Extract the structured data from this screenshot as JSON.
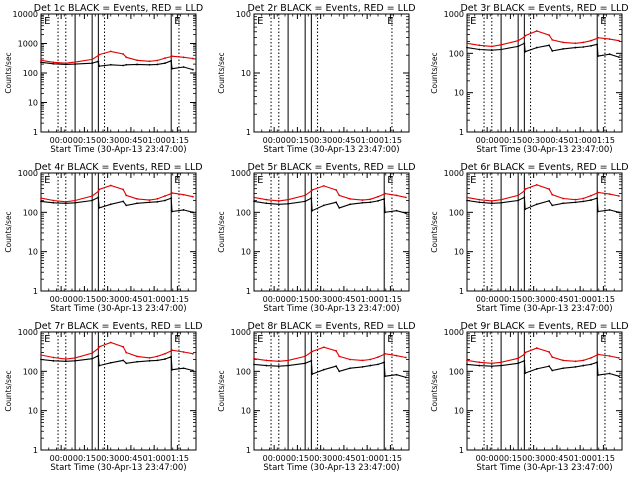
{
  "figure": {
    "x_axis_label": "Start Time (30-Apr-13 23:47:00)",
    "y_axis_label": "Counts/sec",
    "x_tick_labels": [
      "00:00",
      "00:15",
      "00:30",
      "00:45",
      "01:00",
      "01:15"
    ],
    "x_tick_minutes": [
      13,
      28,
      43,
      58,
      73,
      88
    ],
    "x_range_minutes": [
      0,
      100
    ],
    "series_legend": "BLACK = Events, RED = LLD",
    "colors": {
      "events": "#000000",
      "lld": "#e00000"
    }
  },
  "chart_data": [
    {
      "type": "line",
      "title": "Det 1c BLACK = Events, RED = LLD",
      "xlabel": "Start Time (30-Apr-13 23:47:00)",
      "ylabel": "Counts/sec",
      "yscale": "log",
      "ylim": [
        1,
        10000
      ],
      "y_tick_labels": [
        "1",
        "10",
        "100",
        "1000",
        "10000"
      ],
      "xlim_minutes": [
        0,
        100
      ],
      "solid_vlines_minutes": [
        22,
        33,
        37,
        84
      ],
      "dashed_vlines_minutes": [
        11,
        16,
        41,
        89
      ],
      "markers": [
        {
          "label": "E",
          "minute": 2
        },
        {
          "label": "E",
          "minute": 86
        }
      ],
      "x_minutes": [
        0,
        8,
        16,
        22,
        33,
        37,
        37.5,
        45,
        53,
        55,
        62,
        70,
        75,
        80,
        84,
        84.5,
        92,
        98
      ],
      "series": [
        {
          "name": "Events",
          "values": [
            230,
            205,
            195,
            200,
            215,
            250,
            170,
            190,
            180,
            190,
            195,
            190,
            195,
            215,
            260,
            140,
            160,
            130
          ]
        },
        {
          "name": "LLD",
          "values": [
            270,
            230,
            215,
            235,
            290,
            390,
            420,
            540,
            440,
            340,
            270,
            250,
            265,
            320,
            360,
            370,
            340,
            310
          ]
        }
      ]
    },
    {
      "type": "line",
      "title": "Det 2r BLACK = Events, RED = LLD",
      "xlabel": "Start Time (30-Apr-13 23:47:00)",
      "ylabel": "Counts/sec",
      "yscale": "log",
      "ylim": [
        1,
        100
      ],
      "y_tick_labels": [
        "1",
        "10",
        "100"
      ],
      "xlim_minutes": [
        0,
        100
      ],
      "solid_vlines_minutes": [
        22,
        33,
        37
      ],
      "dashed_vlines_minutes": [
        11,
        16,
        41,
        89
      ],
      "markers": [
        {
          "label": "E",
          "minute": 2
        },
        {
          "label": "E",
          "minute": 86
        }
      ],
      "x_minutes": [],
      "series": []
    },
    {
      "type": "line",
      "title": "Det 3r BLACK = Events, RED = LLD",
      "xlabel": "Start Time (30-Apr-13 23:47:00)",
      "ylabel": "Counts/sec",
      "yscale": "log",
      "ylim": [
        1,
        1000
      ],
      "y_tick_labels": [
        "1",
        "10",
        "100",
        "1000"
      ],
      "xlim_minutes": [
        0,
        100
      ],
      "solid_vlines_minutes": [
        22,
        33,
        37,
        84
      ],
      "dashed_vlines_minutes": [
        11,
        16,
        41,
        89
      ],
      "markers": [
        {
          "label": "E",
          "minute": 2
        },
        {
          "label": "E",
          "minute": 86
        }
      ],
      "x_minutes": [
        0,
        8,
        16,
        22,
        33,
        37,
        37.5,
        45,
        53,
        55,
        62,
        70,
        75,
        80,
        84,
        84.5,
        92,
        98
      ],
      "series": [
        {
          "name": "Events",
          "values": [
            140,
            125,
            120,
            125,
            150,
            180,
            110,
            140,
            160,
            115,
            130,
            140,
            145,
            155,
            170,
            85,
            95,
            80
          ]
        },
        {
          "name": "LLD",
          "values": [
            180,
            160,
            150,
            165,
            210,
            260,
            280,
            370,
            290,
            220,
            190,
            180,
            190,
            210,
            240,
            250,
            230,
            210
          ]
        }
      ]
    },
    {
      "type": "line",
      "title": "Det 4r BLACK = Events, RED = LLD",
      "xlabel": "Start Time (30-Apr-13 23:47:00)",
      "ylabel": "Counts/sec",
      "yscale": "log",
      "ylim": [
        1,
        1000
      ],
      "y_tick_labels": [
        "1",
        "10",
        "100",
        "1000"
      ],
      "xlim_minutes": [
        0,
        100
      ],
      "solid_vlines_minutes": [
        22,
        33,
        37,
        84
      ],
      "dashed_vlines_minutes": [
        11,
        16,
        41,
        89
      ],
      "markers": [
        {
          "label": "E",
          "minute": 2
        },
        {
          "label": "E",
          "minute": 86
        }
      ],
      "x_minutes": [
        0,
        8,
        16,
        22,
        33,
        37,
        37.5,
        45,
        53,
        55,
        62,
        70,
        75,
        80,
        84,
        84.5,
        92,
        98
      ],
      "series": [
        {
          "name": "Events",
          "values": [
            190,
            175,
            170,
            175,
            200,
            240,
            130,
            160,
            190,
            150,
            170,
            180,
            185,
            200,
            230,
            105,
            115,
            100
          ]
        },
        {
          "name": "LLD",
          "values": [
            230,
            200,
            185,
            200,
            260,
            340,
            380,
            480,
            380,
            270,
            220,
            205,
            220,
            260,
            300,
            310,
            280,
            250
          ]
        }
      ]
    },
    {
      "type": "line",
      "title": "Det 5r BLACK = Events, RED = LLD",
      "xlabel": "Start Time (30-Apr-13 23:47:00)",
      "ylabel": "Counts/sec",
      "yscale": "log",
      "ylim": [
        1,
        1000
      ],
      "y_tick_labels": [
        "1",
        "10",
        "100",
        "1000"
      ],
      "xlim_minutes": [
        0,
        100
      ],
      "solid_vlines_minutes": [
        22,
        33,
        37,
        84
      ],
      "dashed_vlines_minutes": [
        11,
        16,
        41,
        89
      ],
      "markers": [
        {
          "label": "E",
          "minute": 2
        },
        {
          "label": "E",
          "minute": 86
        }
      ],
      "x_minutes": [
        0,
        8,
        16,
        22,
        33,
        37,
        37.5,
        45,
        53,
        55,
        62,
        70,
        75,
        80,
        84,
        84.5,
        92,
        98
      ],
      "series": [
        {
          "name": "Events",
          "values": [
            190,
            170,
            160,
            165,
            190,
            230,
            110,
            150,
            180,
            130,
            160,
            175,
            180,
            195,
            220,
            100,
            110,
            95
          ]
        },
        {
          "name": "LLD",
          "values": [
            240,
            210,
            195,
            210,
            270,
            350,
            370,
            470,
            370,
            270,
            220,
            205,
            215,
            250,
            290,
            300,
            270,
            240
          ]
        }
      ]
    },
    {
      "type": "line",
      "title": "Det 6r BLACK = Events, RED = LLD",
      "xlabel": "Start Time (30-Apr-13 23:47:00)",
      "ylabel": "Counts/sec",
      "yscale": "log",
      "ylim": [
        1,
        1000
      ],
      "y_tick_labels": [
        "1",
        "10",
        "100",
        "1000"
      ],
      "xlim_minutes": [
        0,
        100
      ],
      "solid_vlines_minutes": [
        22,
        33,
        37,
        84
      ],
      "dashed_vlines_minutes": [
        11,
        16,
        41,
        89
      ],
      "markers": [
        {
          "label": "E",
          "minute": 2
        },
        {
          "label": "E",
          "minute": 86
        }
      ],
      "x_minutes": [
        0,
        8,
        16,
        22,
        33,
        37,
        37.5,
        45,
        53,
        55,
        62,
        70,
        75,
        80,
        84,
        84.5,
        92,
        98
      ],
      "series": [
        {
          "name": "Events",
          "values": [
            200,
            180,
            170,
            175,
            200,
            240,
            120,
            160,
            195,
            150,
            170,
            180,
            190,
            205,
            230,
            105,
            115,
            100
          ]
        },
        {
          "name": "LLD",
          "values": [
            240,
            210,
            195,
            210,
            270,
            350,
            390,
            500,
            390,
            280,
            225,
            210,
            225,
            265,
            310,
            320,
            290,
            260
          ]
        }
      ]
    },
    {
      "type": "line",
      "title": "Det 7r BLACK = Events, RED = LLD",
      "xlabel": "Start Time (30-Apr-13 23:47:00)",
      "ylabel": "Counts/sec",
      "yscale": "log",
      "ylim": [
        1,
        1000
      ],
      "y_tick_labels": [
        "1",
        "10",
        "100",
        "1000"
      ],
      "xlim_minutes": [
        0,
        100
      ],
      "solid_vlines_minutes": [
        22,
        33,
        37,
        84
      ],
      "dashed_vlines_minutes": [
        11,
        16,
        41,
        89
      ],
      "markers": [
        {
          "label": "E",
          "minute": 2
        },
        {
          "label": "E",
          "minute": 86
        }
      ],
      "x_minutes": [
        0,
        8,
        16,
        22,
        33,
        37,
        37.5,
        45,
        53,
        55,
        62,
        70,
        75,
        80,
        84,
        84.5,
        92,
        98
      ],
      "series": [
        {
          "name": "Events",
          "values": [
            200,
            185,
            180,
            185,
            210,
            250,
            140,
            165,
            190,
            160,
            175,
            185,
            190,
            205,
            235,
            110,
            120,
            105
          ]
        },
        {
          "name": "LLD",
          "values": [
            260,
            225,
            205,
            220,
            290,
            380,
            420,
            540,
            420,
            300,
            240,
            220,
            240,
            280,
            330,
            345,
            310,
            280
          ]
        }
      ]
    },
    {
      "type": "line",
      "title": "Det 8r BLACK = Events, RED = LLD",
      "xlabel": "Start Time (30-Apr-13 23:47:00)",
      "ylabel": "Counts/sec",
      "yscale": "log",
      "ylim": [
        1,
        1000
      ],
      "y_tick_labels": [
        "1",
        "10",
        "100",
        "1000"
      ],
      "xlim_minutes": [
        0,
        100
      ],
      "solid_vlines_minutes": [
        22,
        33,
        37,
        84
      ],
      "dashed_vlines_minutes": [
        11,
        16,
        41,
        89
      ],
      "markers": [
        {
          "label": "E",
          "minute": 2
        },
        {
          "label": "E",
          "minute": 86
        }
      ],
      "x_minutes": [
        0,
        8,
        16,
        22,
        33,
        37,
        37.5,
        45,
        53,
        55,
        62,
        70,
        75,
        80,
        84,
        84.5,
        92,
        98
      ],
      "series": [
        {
          "name": "Events",
          "values": [
            150,
            140,
            135,
            140,
            160,
            185,
            85,
            110,
            135,
            100,
            120,
            130,
            140,
            150,
            170,
            75,
            82,
            70
          ]
        },
        {
          "name": "LLD",
          "values": [
            210,
            190,
            180,
            190,
            240,
            310,
            320,
            410,
            330,
            240,
            200,
            190,
            200,
            230,
            270,
            280,
            250,
            225
          ]
        }
      ]
    },
    {
      "type": "line",
      "title": "Det 9r BLACK = Events, RED = LLD",
      "xlabel": "Start Time (30-Apr-13 23:47:00)",
      "ylabel": "Counts/sec",
      "yscale": "log",
      "ylim": [
        1,
        1000
      ],
      "y_tick_labels": [
        "1",
        "10",
        "100",
        "1000"
      ],
      "xlim_minutes": [
        0,
        100
      ],
      "solid_vlines_minutes": [
        22,
        33,
        37,
        84
      ],
      "dashed_vlines_minutes": [
        11,
        16,
        41,
        89
      ],
      "markers": [
        {
          "label": "E",
          "minute": 2
        },
        {
          "label": "E",
          "minute": 86
        }
      ],
      "x_minutes": [
        0,
        8,
        16,
        22,
        33,
        37,
        37.5,
        45,
        53,
        55,
        62,
        70,
        75,
        80,
        84,
        84.5,
        92,
        98
      ],
      "series": [
        {
          "name": "Events",
          "values": [
            150,
            140,
            135,
            140,
            160,
            185,
            90,
            115,
            135,
            105,
            120,
            130,
            140,
            150,
            170,
            80,
            88,
            75
          ]
        },
        {
          "name": "LLD",
          "values": [
            190,
            170,
            160,
            170,
            215,
            270,
            300,
            390,
            310,
            230,
            190,
            180,
            190,
            220,
            260,
            270,
            245,
            220
          ]
        }
      ]
    }
  ]
}
